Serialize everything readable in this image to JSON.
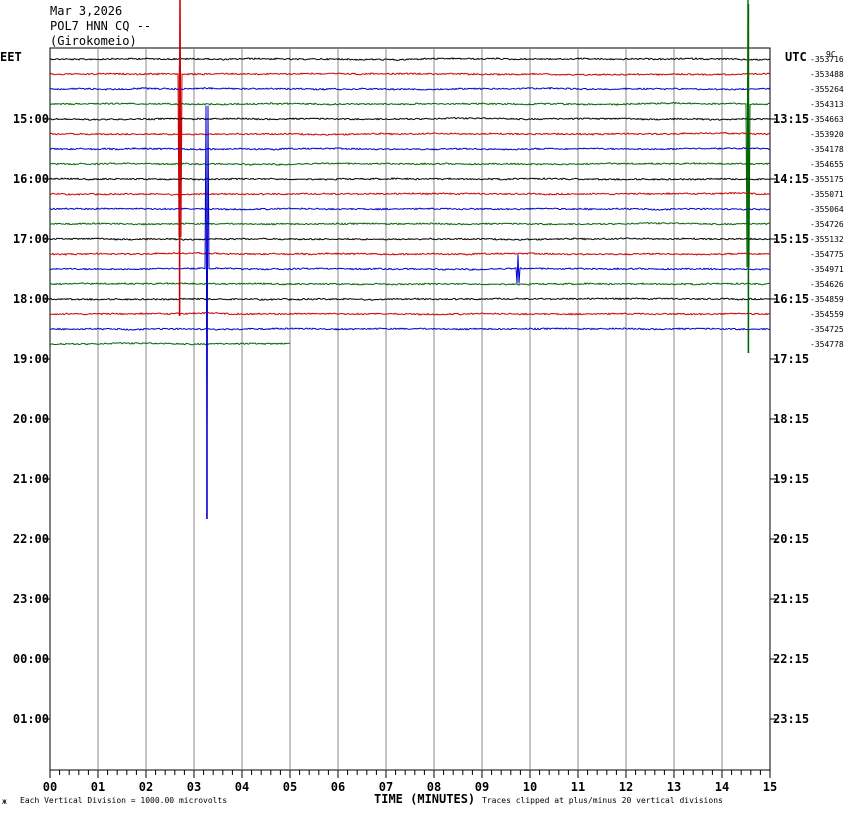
{
  "header": {
    "date": "Mar 3,2026",
    "station": "POL7 HNN CQ --",
    "location": "(Girokomeio)"
  },
  "left_timezone": "EET",
  "right_timezone": "UTC",
  "top_right_label": "9C",
  "footer": {
    "left_mark": "ж",
    "scale_note": "Each Vertical Division = 1000.00 microvolts",
    "clip_note": "Traces clipped at plus/minus 20 vertical divisions"
  },
  "chart_data": {
    "type": "line",
    "title": "",
    "xlabel": "TIME (MINUTES)",
    "x_ticks": [
      "00",
      "01",
      "02",
      "03",
      "04",
      "05",
      "06",
      "07",
      "08",
      "09",
      "10",
      "11",
      "12",
      "13",
      "14",
      "15"
    ],
    "xlim": [
      0,
      15
    ],
    "left_hour_labels": [
      "15:00",
      "16:00",
      "17:00",
      "18:00",
      "19:00",
      "20:00",
      "21:00",
      "22:00",
      "23:00",
      "00:00",
      "01:00"
    ],
    "right_hour_labels": [
      "13:15",
      "14:15",
      "15:15",
      "16:15",
      "17:15",
      "18:15",
      "19:15",
      "20:15",
      "21:15",
      "22:15",
      "23:15"
    ],
    "trace_colors": [
      "#000000",
      "#cc0000",
      "#0000cc",
      "#006600"
    ],
    "trace_offsets": [
      "-353716",
      "-353488",
      "-355264",
      "-354313",
      "-354663",
      "-353920",
      "-354178",
      "-354655",
      "-355175",
      "-355071",
      "-355064",
      "-354726",
      "-355132",
      "-354775",
      "-354971",
      "-354626",
      "-354859",
      "-354559",
      "-354725",
      "-354778"
    ],
    "last_trace_end_minute": 5.0,
    "events": [
      {
        "trace": 1,
        "minute": 2.7,
        "amplitude_divisions": 17
      },
      {
        "trace": 14,
        "minute": 3.27,
        "amplitude_divisions": 17
      },
      {
        "trace": 14,
        "minute": 9.75,
        "amplitude_divisions": 1.5
      },
      {
        "trace": 3,
        "minute": 14.55,
        "amplitude_divisions": 17
      }
    ]
  }
}
